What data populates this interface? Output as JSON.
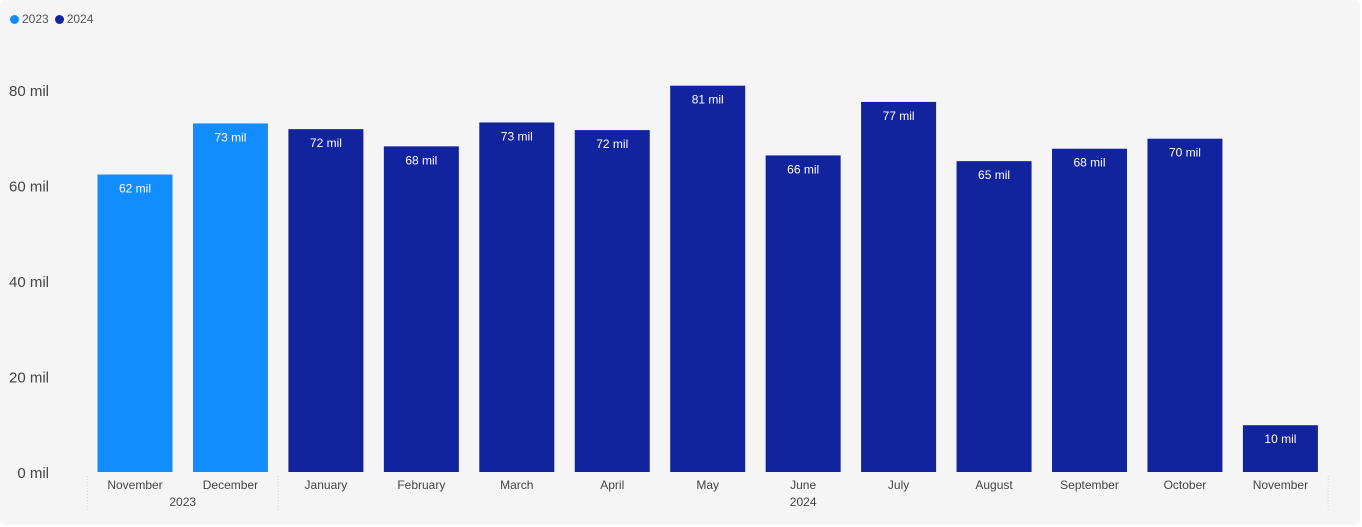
{
  "chart_data": {
    "type": "bar",
    "legend": [
      {
        "name": "2023",
        "color": "#118DFF"
      },
      {
        "name": "2024",
        "color": "#12239E"
      }
    ],
    "ylim": [
      0,
      80
    ],
    "yticks": [
      0,
      20,
      40,
      60,
      80
    ],
    "ytick_labels": [
      "0 mil",
      "20 mil",
      "40 mil",
      "60 mil",
      "80 mil"
    ],
    "legend_position": "top-left",
    "grid": false,
    "bars": [
      {
        "month": "November",
        "year": "2023",
        "value": 62.3,
        "label": "62 mil"
      },
      {
        "month": "December",
        "year": "2023",
        "value": 73.0,
        "label": "73 mil"
      },
      {
        "month": "January",
        "year": "2024",
        "value": 71.8,
        "label": "72 mil"
      },
      {
        "month": "February",
        "year": "2024",
        "value": 68.2,
        "label": "68 mil"
      },
      {
        "month": "March",
        "year": "2024",
        "value": 73.2,
        "label": "73 mil"
      },
      {
        "month": "April",
        "year": "2024",
        "value": 71.6,
        "label": "72 mil"
      },
      {
        "month": "May",
        "year": "2024",
        "value": 80.9,
        "label": "81 mil"
      },
      {
        "month": "June",
        "year": "2024",
        "value": 66.3,
        "label": "66 mil"
      },
      {
        "month": "July",
        "year": "2024",
        "value": 77.5,
        "label": "77 mil"
      },
      {
        "month": "August",
        "year": "2024",
        "value": 65.1,
        "label": "65 mil"
      },
      {
        "month": "September",
        "year": "2024",
        "value": 67.7,
        "label": "68 mil"
      },
      {
        "month": "October",
        "year": "2024",
        "value": 69.8,
        "label": "70 mil"
      },
      {
        "month": "November",
        "year": "2024",
        "value": 9.8,
        "label": "10 mil"
      }
    ],
    "year_groups": [
      "2023",
      "2024"
    ]
  }
}
